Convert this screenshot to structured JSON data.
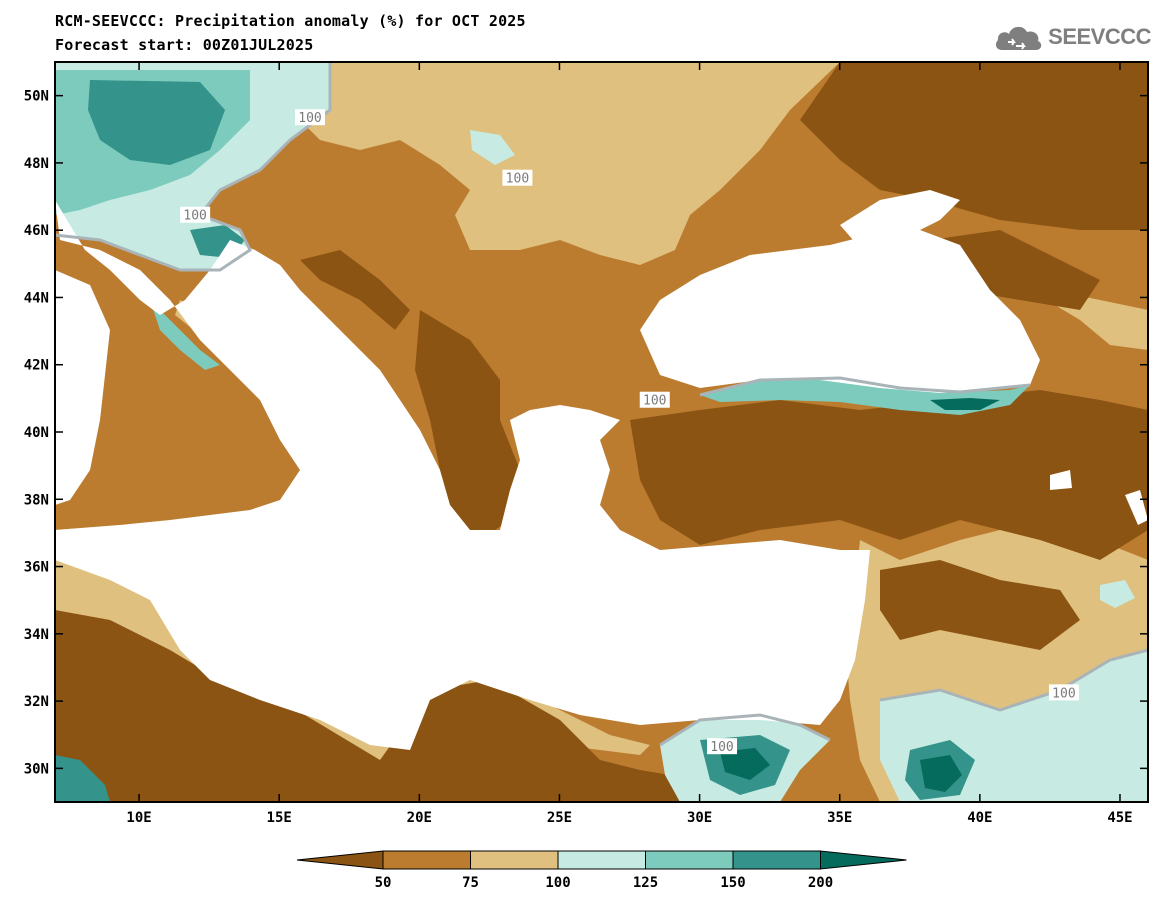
{
  "title_line1": "RCM-SEEVCCC: Precipitation anomaly (%) for OCT 2025",
  "title_line2": "Forecast start: 00Z01JUL2025",
  "logo": {
    "text": "SEEVCCC",
    "icon": "cloud-logo-icon"
  },
  "map": {
    "lon_range": [
      7,
      46
    ],
    "lat_range": [
      29,
      51
    ],
    "lon_ticks": [
      {
        "value": 10,
        "label": "10E"
      },
      {
        "value": 15,
        "label": "15E"
      },
      {
        "value": 20,
        "label": "20E"
      },
      {
        "value": 25,
        "label": "25E"
      },
      {
        "value": 30,
        "label": "30E"
      },
      {
        "value": 35,
        "label": "35E"
      },
      {
        "value": 40,
        "label": "40E"
      },
      {
        "value": 45,
        "label": "45E"
      }
    ],
    "lat_ticks": [
      {
        "value": 30,
        "label": "30N"
      },
      {
        "value": 32,
        "label": "32N"
      },
      {
        "value": 34,
        "label": "34N"
      },
      {
        "value": 36,
        "label": "36N"
      },
      {
        "value": 38,
        "label": "38N"
      },
      {
        "value": 40,
        "label": "40N"
      },
      {
        "value": 42,
        "label": "42N"
      },
      {
        "value": 44,
        "label": "44N"
      },
      {
        "value": 46,
        "label": "46N"
      },
      {
        "value": 48,
        "label": "48N"
      },
      {
        "value": 50,
        "label": "50N"
      }
    ],
    "contour_labels": [
      {
        "text": "100",
        "lon": 16.1,
        "lat": 49.3
      },
      {
        "text": "100",
        "lon": 23.5,
        "lat": 47.5
      },
      {
        "text": "100",
        "lon": 12.0,
        "lat": 46.4
      },
      {
        "text": "100",
        "lon": 28.4,
        "lat": 40.9
      },
      {
        "text": "100",
        "lon": 43.0,
        "lat": 32.2
      },
      {
        "text": "100",
        "lon": 30.8,
        "lat": 30.6
      }
    ]
  },
  "colorbar": {
    "labels": [
      "50",
      "75",
      "100",
      "125",
      "150",
      "200"
    ],
    "colors": [
      "#8c5412",
      "#bb7c30",
      "#dfc07e",
      "#c7ebe3",
      "#7ccbbd",
      "#34938a",
      "#056b5d"
    ]
  },
  "colors": {
    "sea": "#ffffff",
    "dry_strong": "#8c5412",
    "dry": "#bb7c30",
    "dry_light": "#dfc07e",
    "wet_light": "#c7ebe3",
    "wet": "#7ccbbd",
    "wet_strong": "#34938a",
    "wet_extreme": "#056b5d",
    "contour100": "#a9b4b8"
  }
}
